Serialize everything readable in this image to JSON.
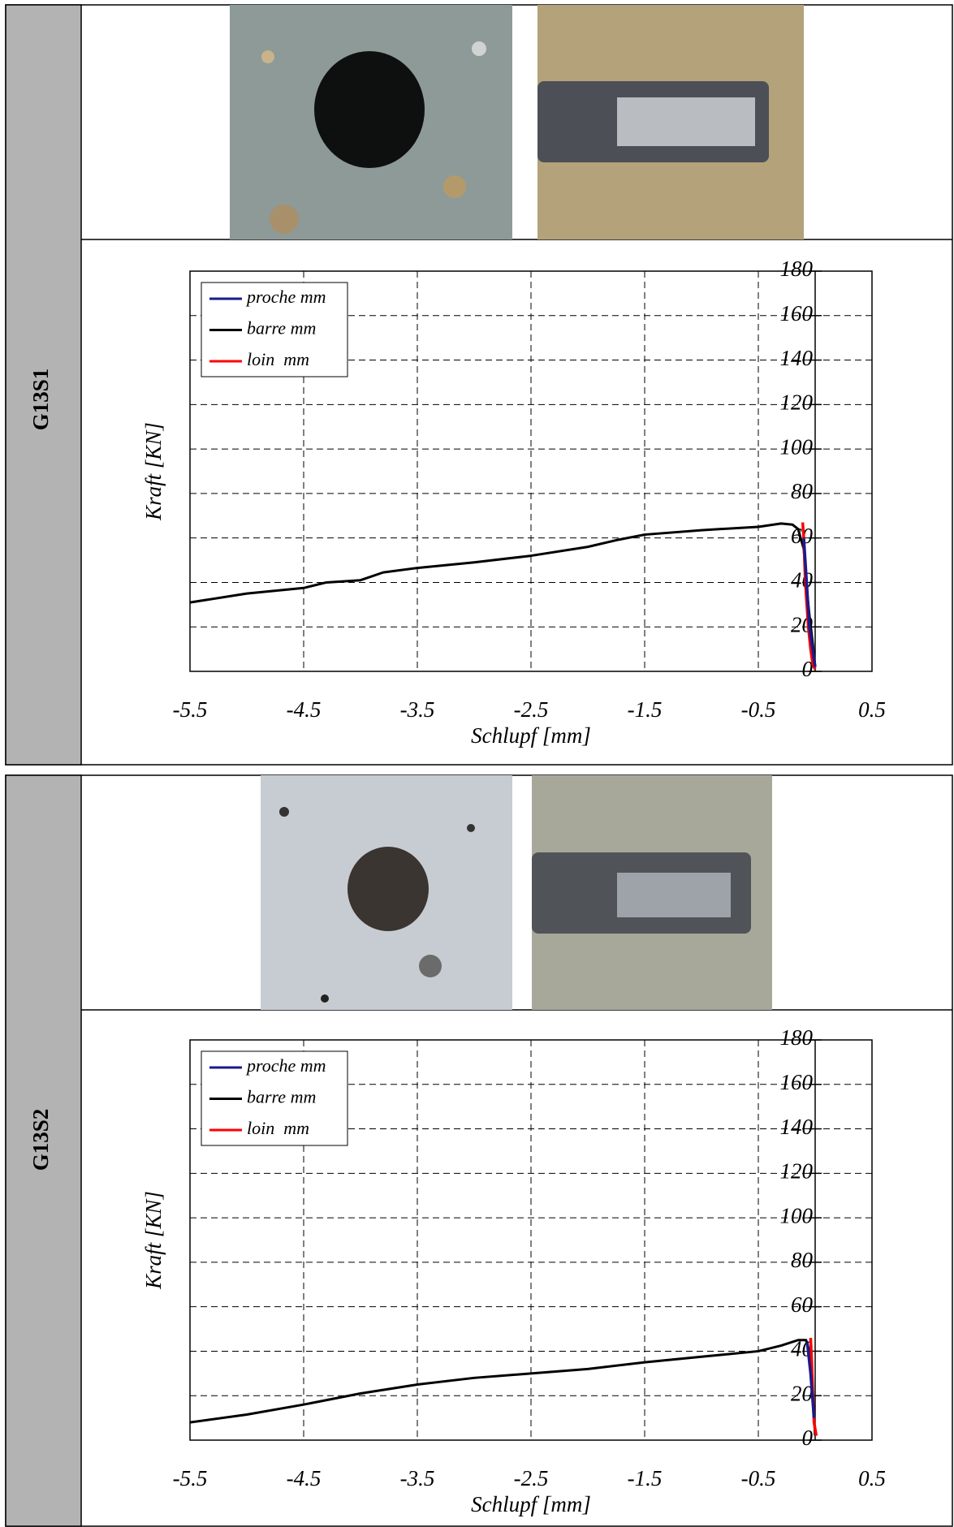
{
  "panels": [
    {
      "label": "G13S1"
    },
    {
      "label": "G13S2"
    }
  ],
  "chart_data": [
    {
      "type": "line",
      "x_label": "Schlupf [mm]",
      "y_label": "Kraft [KN]",
      "xlim": [
        -5.5,
        0.5
      ],
      "ylim": [
        0,
        180
      ],
      "xticks": [
        -5.5,
        -4.5,
        -3.5,
        -2.5,
        -1.5,
        -0.5,
        0.5
      ],
      "yticks": [
        0,
        20,
        40,
        60,
        80,
        100,
        120,
        140,
        160,
        180
      ],
      "grid": true,
      "legend": "upper left",
      "series": [
        {
          "name": "proche mm",
          "color": "#1a1a8c",
          "x": [
            -0.1,
            -0.05,
            0.0
          ],
          "values": [
            60,
            20,
            2
          ]
        },
        {
          "name": "barre mm",
          "color": "#000000",
          "x": [
            -5.5,
            -5.0,
            -4.5,
            -4.3,
            -4.0,
            -3.8,
            -3.5,
            -3.0,
            -2.5,
            -2.0,
            -1.75,
            -1.5,
            -1.0,
            -0.5,
            -0.3,
            -0.2,
            -0.15,
            -0.1,
            -0.08,
            -0.05,
            -0.02,
            0.0
          ],
          "values": [
            31,
            35,
            37.5,
            40,
            41,
            44.5,
            46.5,
            49,
            52,
            56,
            59,
            61.5,
            63.5,
            65,
            66.5,
            66,
            64,
            55,
            40,
            25,
            12,
            2
          ]
        },
        {
          "name": "loin  mm",
          "color": "#ff0000",
          "x": [
            -0.11,
            -0.1,
            -0.09,
            -0.08,
            -0.06,
            -0.04,
            -0.02,
            0.0
          ],
          "values": [
            67,
            60,
            45,
            35,
            20,
            10,
            3,
            1
          ]
        }
      ]
    },
    {
      "type": "line",
      "x_label": "Schlupf [mm]",
      "y_label": "Kraft [KN]",
      "xlim": [
        -5.5,
        0.5
      ],
      "ylim": [
        0,
        180
      ],
      "xticks": [
        -5.5,
        -4.5,
        -3.5,
        -2.5,
        -1.5,
        -0.5,
        0.5
      ],
      "yticks": [
        0,
        20,
        40,
        60,
        80,
        100,
        120,
        140,
        160,
        180
      ],
      "grid": true,
      "legend": "upper left",
      "series": [
        {
          "name": "proche mm",
          "color": "#1a1a8c",
          "x": [
            -0.07,
            -0.04,
            -0.01
          ],
          "values": [
            44,
            30,
            10
          ]
        },
        {
          "name": "barre mm",
          "color": "#000000",
          "x": [
            -5.5,
            -5.0,
            -4.5,
            -4.0,
            -3.5,
            -3.0,
            -2.5,
            -2.0,
            -1.5,
            -1.0,
            -0.5,
            -0.3,
            -0.15,
            -0.08,
            -0.05,
            -0.03,
            -0.01,
            0.0
          ],
          "values": [
            8,
            11.5,
            16,
            21,
            25,
            28,
            30,
            32,
            35,
            37.5,
            40,
            42.5,
            45,
            45,
            40,
            25,
            10,
            2
          ]
        },
        {
          "name": "loin  mm",
          "color": "#ff0000",
          "x": [
            -0.04,
            -0.03,
            -0.02,
            -0.01,
            0.01
          ],
          "values": [
            46,
            35,
            20,
            8,
            2
          ]
        }
      ]
    }
  ]
}
